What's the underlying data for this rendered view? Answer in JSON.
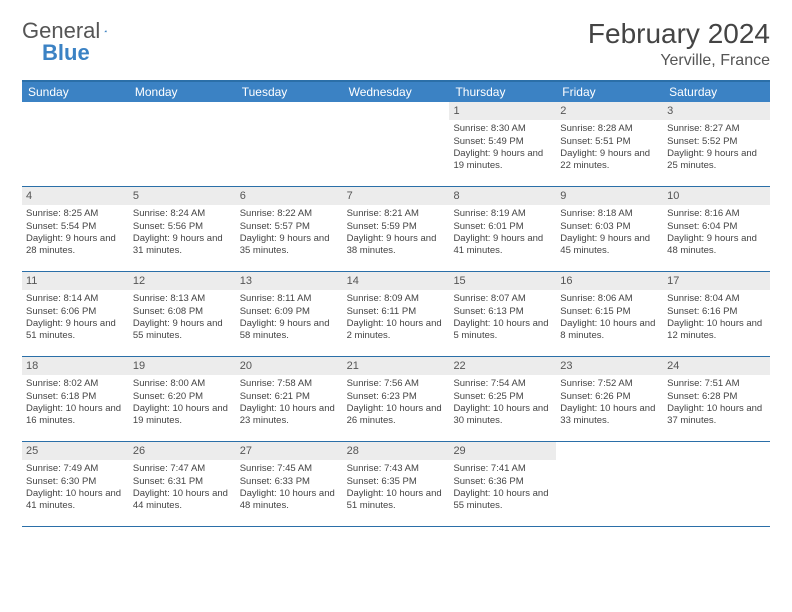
{
  "logo": {
    "text1": "General",
    "text2": "Blue"
  },
  "title": "February 2024",
  "location": "Yerville, France",
  "colors": {
    "header_bg": "#3b82c4",
    "header_border": "#2b6fa8",
    "daynum_bg": "#ececec",
    "text": "#444444"
  },
  "day_names": [
    "Sunday",
    "Monday",
    "Tuesday",
    "Wednesday",
    "Thursday",
    "Friday",
    "Saturday"
  ],
  "weeks": [
    [
      null,
      null,
      null,
      null,
      {
        "n": "1",
        "sr": "8:30 AM",
        "ss": "5:49 PM",
        "dl": "9 hours and 19 minutes."
      },
      {
        "n": "2",
        "sr": "8:28 AM",
        "ss": "5:51 PM",
        "dl": "9 hours and 22 minutes."
      },
      {
        "n": "3",
        "sr": "8:27 AM",
        "ss": "5:52 PM",
        "dl": "9 hours and 25 minutes."
      }
    ],
    [
      {
        "n": "4",
        "sr": "8:25 AM",
        "ss": "5:54 PM",
        "dl": "9 hours and 28 minutes."
      },
      {
        "n": "5",
        "sr": "8:24 AM",
        "ss": "5:56 PM",
        "dl": "9 hours and 31 minutes."
      },
      {
        "n": "6",
        "sr": "8:22 AM",
        "ss": "5:57 PM",
        "dl": "9 hours and 35 minutes."
      },
      {
        "n": "7",
        "sr": "8:21 AM",
        "ss": "5:59 PM",
        "dl": "9 hours and 38 minutes."
      },
      {
        "n": "8",
        "sr": "8:19 AM",
        "ss": "6:01 PM",
        "dl": "9 hours and 41 minutes."
      },
      {
        "n": "9",
        "sr": "8:18 AM",
        "ss": "6:03 PM",
        "dl": "9 hours and 45 minutes."
      },
      {
        "n": "10",
        "sr": "8:16 AM",
        "ss": "6:04 PM",
        "dl": "9 hours and 48 minutes."
      }
    ],
    [
      {
        "n": "11",
        "sr": "8:14 AM",
        "ss": "6:06 PM",
        "dl": "9 hours and 51 minutes."
      },
      {
        "n": "12",
        "sr": "8:13 AM",
        "ss": "6:08 PM",
        "dl": "9 hours and 55 minutes."
      },
      {
        "n": "13",
        "sr": "8:11 AM",
        "ss": "6:09 PM",
        "dl": "9 hours and 58 minutes."
      },
      {
        "n": "14",
        "sr": "8:09 AM",
        "ss": "6:11 PM",
        "dl": "10 hours and 2 minutes."
      },
      {
        "n": "15",
        "sr": "8:07 AM",
        "ss": "6:13 PM",
        "dl": "10 hours and 5 minutes."
      },
      {
        "n": "16",
        "sr": "8:06 AM",
        "ss": "6:15 PM",
        "dl": "10 hours and 8 minutes."
      },
      {
        "n": "17",
        "sr": "8:04 AM",
        "ss": "6:16 PM",
        "dl": "10 hours and 12 minutes."
      }
    ],
    [
      {
        "n": "18",
        "sr": "8:02 AM",
        "ss": "6:18 PM",
        "dl": "10 hours and 16 minutes."
      },
      {
        "n": "19",
        "sr": "8:00 AM",
        "ss": "6:20 PM",
        "dl": "10 hours and 19 minutes."
      },
      {
        "n": "20",
        "sr": "7:58 AM",
        "ss": "6:21 PM",
        "dl": "10 hours and 23 minutes."
      },
      {
        "n": "21",
        "sr": "7:56 AM",
        "ss": "6:23 PM",
        "dl": "10 hours and 26 minutes."
      },
      {
        "n": "22",
        "sr": "7:54 AM",
        "ss": "6:25 PM",
        "dl": "10 hours and 30 minutes."
      },
      {
        "n": "23",
        "sr": "7:52 AM",
        "ss": "6:26 PM",
        "dl": "10 hours and 33 minutes."
      },
      {
        "n": "24",
        "sr": "7:51 AM",
        "ss": "6:28 PM",
        "dl": "10 hours and 37 minutes."
      }
    ],
    [
      {
        "n": "25",
        "sr": "7:49 AM",
        "ss": "6:30 PM",
        "dl": "10 hours and 41 minutes."
      },
      {
        "n": "26",
        "sr": "7:47 AM",
        "ss": "6:31 PM",
        "dl": "10 hours and 44 minutes."
      },
      {
        "n": "27",
        "sr": "7:45 AM",
        "ss": "6:33 PM",
        "dl": "10 hours and 48 minutes."
      },
      {
        "n": "28",
        "sr": "7:43 AM",
        "ss": "6:35 PM",
        "dl": "10 hours and 51 minutes."
      },
      {
        "n": "29",
        "sr": "7:41 AM",
        "ss": "6:36 PM",
        "dl": "10 hours and 55 minutes."
      },
      null,
      null
    ]
  ],
  "labels": {
    "sunrise": "Sunrise: ",
    "sunset": "Sunset: ",
    "daylight": "Daylight: "
  }
}
